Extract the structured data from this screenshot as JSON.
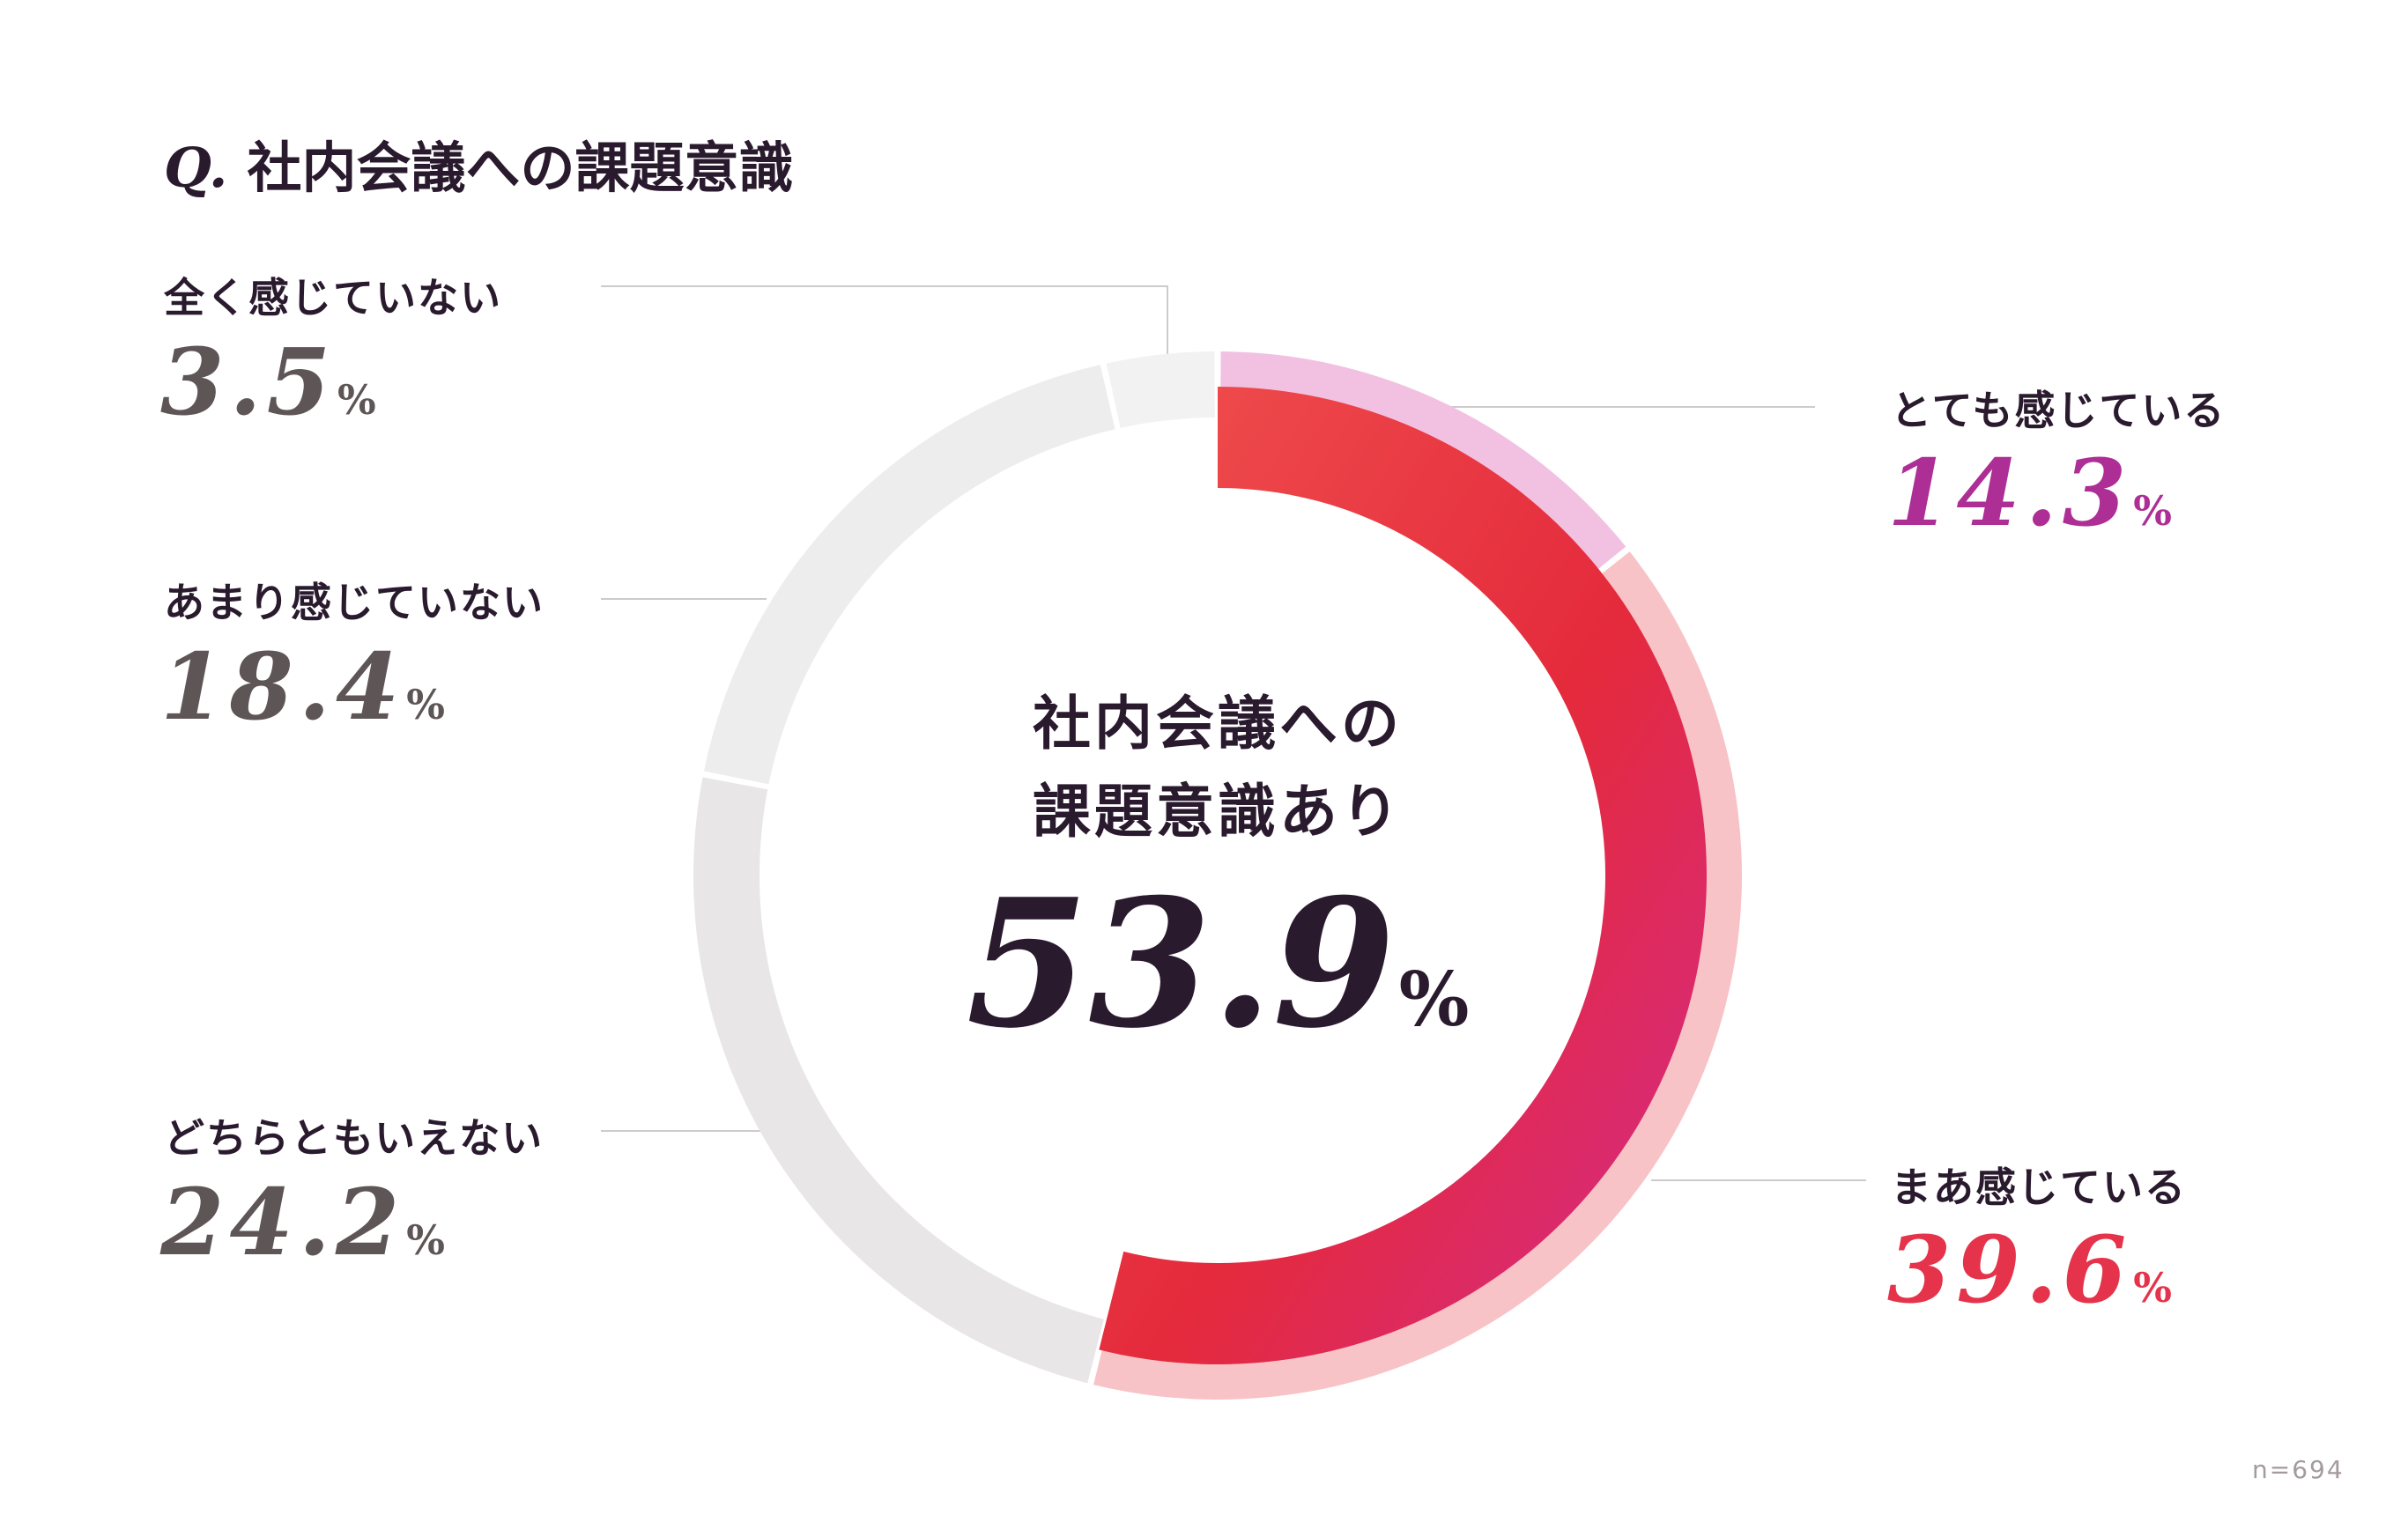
{
  "title": {
    "prefix": "Q.",
    "text": "社内会議への課題意識"
  },
  "center": {
    "line1": "社内会議への",
    "line2": "課題意識あり",
    "value": "53.9",
    "unit": "%"
  },
  "sample_size": "n=694",
  "colors": {
    "accent_gradient_start": "#f0504e",
    "accent_gradient_mid": "#e42a3c",
    "accent_gradient_end": "#d42b8e",
    "very_much_outer": "#f2c1e2",
    "somewhat_outer": "#f8c3c6",
    "neutral_outer": "#e8e6e7",
    "not_much_outer": "#eeedee",
    "not_at_all_outer": "#f3f2f3",
    "very_much_text": "#ad2f96",
    "somewhat_text": "#e4334a",
    "gray_text": "#5e5557",
    "connector": "#cfcacc"
  },
  "chart_data": {
    "type": "pie",
    "subtype": "donut",
    "title": "社内会議への課題意識",
    "unit": "%",
    "n": 694,
    "categories": [
      "とても感じている",
      "まあ感じている",
      "どちらともいえない",
      "あまり感じていない",
      "全く感じていない"
    ],
    "values": [
      14.3,
      39.6,
      24.2,
      18.4,
      3.5
    ],
    "highlight": {
      "label": "社内会議への課題意識あり",
      "value": 53.9,
      "components": [
        "とても感じている",
        "まあ感じている"
      ]
    }
  },
  "labels": [
    {
      "text": "全く感じていない",
      "value": "3.5",
      "unit": "%"
    },
    {
      "text": "あまり感じていない",
      "value": "18.4",
      "unit": "%"
    },
    {
      "text": "どちらともいえない",
      "value": "24.2",
      "unit": "%"
    },
    {
      "text": "とても感じている",
      "value": "14.3",
      "unit": "%"
    },
    {
      "text": "まあ感じている",
      "value": "39.6",
      "unit": "%"
    }
  ]
}
